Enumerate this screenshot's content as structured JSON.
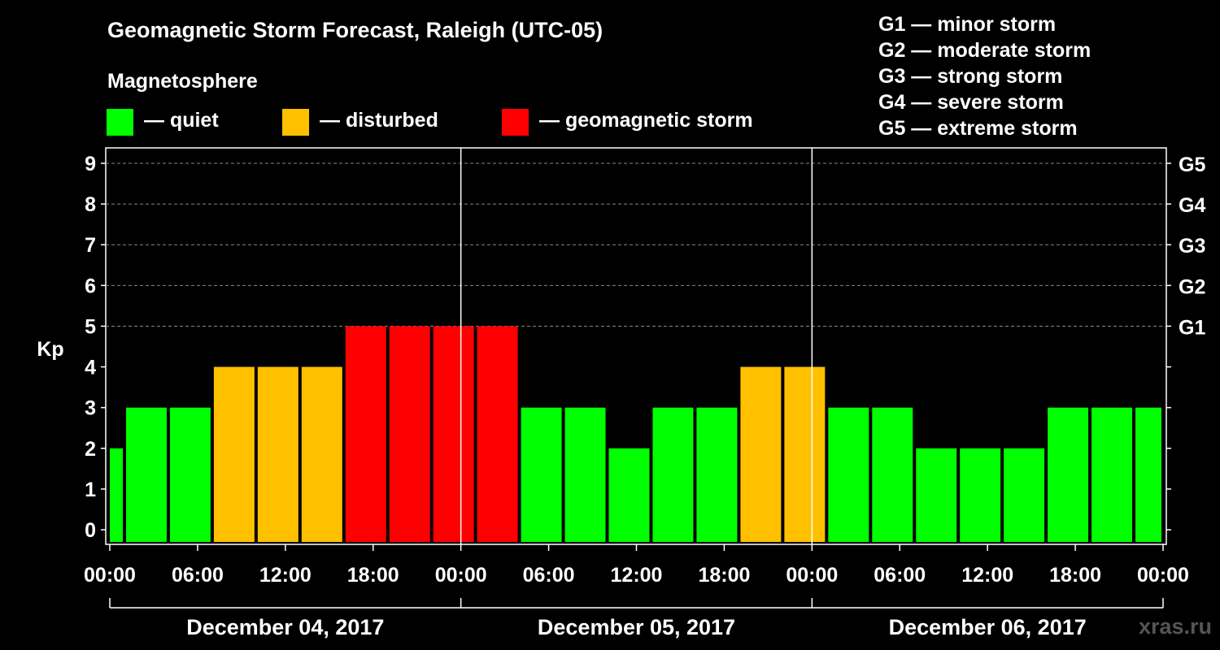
{
  "title": "Geomagnetic Storm Forecast, Raleigh (UTC-05)",
  "legend": {
    "heading": "Magnetosphere",
    "items": [
      {
        "label": "— quiet",
        "color": "#00ff00"
      },
      {
        "label": "— disturbed",
        "color": "#ffc000"
      },
      {
        "label": "— geomagnetic storm",
        "color": "#ff0000"
      }
    ]
  },
  "storm_scale": [
    "G1 — minor storm",
    "G2 — moderate storm",
    "G3 — strong storm",
    "G4 — severe storm",
    "G5 — extreme storm"
  ],
  "credit": "xras.ru",
  "chart_data": {
    "type": "bar",
    "ylabel": "Kp",
    "ylim": [
      0,
      9
    ],
    "y_ticks": [
      "0",
      "1",
      "2",
      "3",
      "4",
      "5",
      "6",
      "7",
      "8",
      "9"
    ],
    "right_ticks": [
      {
        "value": 5,
        "label": "G1"
      },
      {
        "value": 6,
        "label": "G2"
      },
      {
        "value": 7,
        "label": "G3"
      },
      {
        "value": 8,
        "label": "G4"
      },
      {
        "value": 9,
        "label": "G5"
      }
    ],
    "x_tick_labels": [
      "00:00",
      "06:00",
      "12:00",
      "18:00",
      "00:00",
      "06:00",
      "12:00",
      "18:00",
      "00:00",
      "06:00",
      "12:00",
      "18:00",
      "00:00"
    ],
    "dates": [
      "December 04, 2017",
      "December 05, 2017",
      "December 06, 2017"
    ],
    "grid": true,
    "bars": [
      {
        "start_hour": 0,
        "end_hour": 1,
        "kp": 2,
        "status": "quiet"
      },
      {
        "start_hour": 1,
        "end_hour": 4,
        "kp": 3,
        "status": "quiet"
      },
      {
        "start_hour": 4,
        "end_hour": 7,
        "kp": 3,
        "status": "quiet"
      },
      {
        "start_hour": 7,
        "end_hour": 10,
        "kp": 4,
        "status": "disturbed"
      },
      {
        "start_hour": 10,
        "end_hour": 13,
        "kp": 4,
        "status": "disturbed"
      },
      {
        "start_hour": 13,
        "end_hour": 16,
        "kp": 4,
        "status": "disturbed"
      },
      {
        "start_hour": 16,
        "end_hour": 19,
        "kp": 5,
        "status": "storm"
      },
      {
        "start_hour": 19,
        "end_hour": 22,
        "kp": 5,
        "status": "storm"
      },
      {
        "start_hour": 22,
        "end_hour": 25,
        "kp": 5,
        "status": "storm"
      },
      {
        "start_hour": 25,
        "end_hour": 28,
        "kp": 5,
        "status": "storm"
      },
      {
        "start_hour": 28,
        "end_hour": 31,
        "kp": 3,
        "status": "quiet"
      },
      {
        "start_hour": 31,
        "end_hour": 34,
        "kp": 3,
        "status": "quiet"
      },
      {
        "start_hour": 34,
        "end_hour": 37,
        "kp": 2,
        "status": "quiet"
      },
      {
        "start_hour": 37,
        "end_hour": 40,
        "kp": 3,
        "status": "quiet"
      },
      {
        "start_hour": 40,
        "end_hour": 43,
        "kp": 3,
        "status": "quiet"
      },
      {
        "start_hour": 43,
        "end_hour": 46,
        "kp": 4,
        "status": "disturbed"
      },
      {
        "start_hour": 46,
        "end_hour": 49,
        "kp": 4,
        "status": "disturbed"
      },
      {
        "start_hour": 49,
        "end_hour": 52,
        "kp": 3,
        "status": "quiet"
      },
      {
        "start_hour": 52,
        "end_hour": 55,
        "kp": 3,
        "status": "quiet"
      },
      {
        "start_hour": 55,
        "end_hour": 58,
        "kp": 2,
        "status": "quiet"
      },
      {
        "start_hour": 58,
        "end_hour": 61,
        "kp": 2,
        "status": "quiet"
      },
      {
        "start_hour": 61,
        "end_hour": 64,
        "kp": 2,
        "status": "quiet"
      },
      {
        "start_hour": 64,
        "end_hour": 67,
        "kp": 3,
        "status": "quiet"
      },
      {
        "start_hour": 67,
        "end_hour": 70,
        "kp": 3,
        "status": "quiet"
      },
      {
        "start_hour": 70,
        "end_hour": 72,
        "kp": 3,
        "status": "quiet"
      }
    ],
    "status_colors": {
      "quiet": "#00ff00",
      "disturbed": "#ffc000",
      "storm": "#ff0000"
    }
  }
}
